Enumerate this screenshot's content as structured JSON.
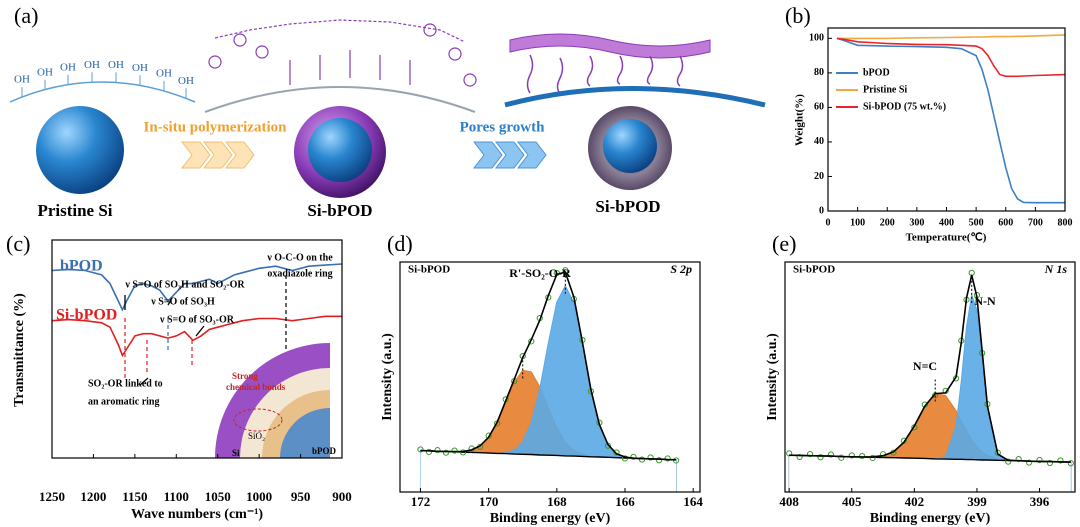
{
  "panel_a": {
    "label": "(a)",
    "oh": "OH",
    "items": [
      "Pristine Si",
      "Si-bPOD",
      "Si-bPOD"
    ],
    "steps": [
      "In-situ polymerization",
      "Pores growth"
    ]
  },
  "chart_data": [
    {
      "type": "line",
      "panel_label": "(b)",
      "x_label": "Temperature(℃)",
      "y_label": "Weight(%)",
      "x": [
        30,
        50,
        100,
        200,
        300,
        400,
        450,
        500,
        520,
        540,
        560,
        580,
        600,
        620,
        640,
        660,
        700,
        800
      ],
      "series": [
        {
          "name": "bPOD",
          "color": "#3d7fc1",
          "style": "line",
          "values": [
            100,
            99,
            96,
            95.5,
            95.2,
            94.8,
            94,
            90,
            82,
            70,
            55,
            40,
            25,
            13,
            7,
            5,
            4.8,
            4.8
          ]
        },
        {
          "name": "Pristine Si",
          "color": "#f2a93b",
          "style": "line",
          "values": [
            100,
            100,
            100,
            100,
            100.3,
            100.5,
            100.6,
            100.8,
            100.8,
            100.9,
            101,
            101,
            101,
            101.1,
            101.2,
            101.2,
            101.4,
            102
          ]
        },
        {
          "name": "Si-bPOD (75 wt.%)",
          "color": "#e8262a",
          "style": "line",
          "values": [
            100,
            99.5,
            98,
            97,
            96.5,
            96.3,
            96,
            95.5,
            94,
            90,
            84,
            79,
            78,
            78,
            78,
            78.2,
            78.5,
            79
          ]
        }
      ],
      "xlim": [
        0,
        800
      ],
      "xticks": [
        0,
        100,
        200,
        300,
        400,
        500,
        600,
        700,
        800
      ],
      "ylim": [
        0,
        106
      ],
      "yticks": [
        0,
        20,
        40,
        60,
        80,
        100
      ],
      "legend": "upper left"
    },
    {
      "type": "line",
      "panel_label": "(c)",
      "x_label": "Wave numbers (cm⁻¹)",
      "y_label": "Transmittance (%)",
      "x": [
        1250,
        1230,
        1210,
        1190,
        1180,
        1170,
        1165,
        1160,
        1150,
        1140,
        1130,
        1120,
        1110,
        1100,
        1090,
        1080,
        1070,
        1060,
        1050,
        1040,
        1030,
        1020,
        1000,
        980,
        960,
        940,
        920,
        900
      ],
      "series": [
        {
          "name": "bPOD",
          "color": "#3a6fb0",
          "style": "line",
          "values": [
            86,
            86.5,
            86,
            84,
            80,
            72,
            68,
            72,
            79,
            80,
            79,
            77,
            72,
            76,
            80,
            80,
            81,
            82,
            80,
            82,
            84,
            85,
            87,
            88,
            86,
            88,
            88.5,
            89
          ]
        },
        {
          "name": "Si-bPOD",
          "color": "#e02020",
          "style": "line",
          "values": [
            63,
            63.5,
            63,
            62,
            60,
            52,
            47,
            50,
            56,
            57,
            57,
            56,
            55,
            56,
            58,
            54,
            56,
            59,
            60,
            61,
            62,
            63,
            64,
            64,
            63,
            64,
            65,
            65
          ]
        }
      ],
      "xlim": [
        1250,
        900
      ],
      "xticks": [
        1250,
        1200,
        1150,
        1100,
        1050,
        1000,
        950,
        900
      ],
      "ylim": [
        0,
        100
      ],
      "annotations": [
        "ν O-C-O on the",
        "oxadiazole ring",
        "ν S=O of SO₃H and SO₂-OR",
        "ν S=O of SO₃H",
        "ν S=O of  SO₃-OR",
        "SO₂-OR linked to",
        "an aromatic ring"
      ],
      "inset": {
        "bond": [
          "Strong",
          "chemical bonds"
        ],
        "oxide": "SiO₂",
        "core": "Si",
        "shell": "bPOD"
      }
    },
    {
      "type": "line",
      "panel_label": "(d)",
      "x_label": "Binding energy (eV)",
      "y_label": "Intensity (a.u.)",
      "title": "Si-bPOD",
      "orbital": "S 2p",
      "annotations": [
        "R'-SO₂-O-R"
      ],
      "x": [
        172,
        171.75,
        171.5,
        171.25,
        171,
        170.75,
        170.5,
        170.25,
        170,
        169.75,
        169.5,
        169.25,
        169,
        168.75,
        168.5,
        168.25,
        168,
        167.75,
        167.5,
        167.25,
        167,
        166.75,
        166.5,
        166.25,
        166,
        165.75,
        165.5,
        165.25,
        165,
        164.75,
        164.5
      ],
      "series": [
        {
          "color": "#e57d2a",
          "style": "area",
          "values": [
            18,
            17.9,
            17.7,
            17.6,
            17.6,
            17.6,
            18.3,
            20.1,
            23.8,
            30.4,
            39.2,
            47.7,
            52.9,
            52.2,
            45.7,
            36.6,
            27.9,
            21.6,
            18,
            16.4,
            15.5,
            15.3,
            15.1,
            14.9,
            14.8,
            14.7,
            14.5,
            14.4,
            14.3,
            14.1,
            14
          ]
        },
        {
          "color": "#5aa9e6",
          "style": "area",
          "values": [
            18,
            17.9,
            17.7,
            17.6,
            17.5,
            17.3,
            17.2,
            17.1,
            16.9,
            16.8,
            17.1,
            18.2,
            21.9,
            30.3,
            45.1,
            64.8,
            82.6,
            89.7,
            82.3,
            64.3,
            44.3,
            29.2,
            20.6,
            16.6,
            15.2,
            14.7,
            14.5,
            14.4,
            14.3,
            14.1,
            14
          ]
        },
        {
          "color": "#000000",
          "style": "baseline",
          "values": [
            18,
            17.9,
            17.7,
            17.6,
            17.5,
            17.3,
            17.2,
            17.1,
            16.9,
            16.8,
            16.7,
            16.5,
            16.4,
            16.3,
            16.1,
            16,
            15.9,
            15.7,
            15.6,
            15.5,
            15.3,
            15.2,
            15.1,
            14.9,
            14.8,
            14.7,
            14.5,
            14.4,
            14.3,
            14.1,
            14
          ]
        },
        {
          "color": "#3a9a2a",
          "style": "markers",
          "values": [
            18.5,
            17.4,
            18.2,
            17.1,
            18,
            17.2,
            18.9,
            19.6,
            24.5,
            29.8,
            40.3,
            48.2,
            59.1,
            65.5,
            75.6,
            84.6,
            95.2,
            96.4,
            83.9,
            66.1,
            43.8,
            30.2,
            20.1,
            17.2,
            14.6,
            15.3,
            14.1,
            15,
            13.8,
            14.6,
            13.7
          ]
        },
        {
          "color": "#000000",
          "style": "line",
          "values": [
            18,
            17.9,
            17.7,
            17.6,
            17.6,
            17.6,
            18.3,
            20.1,
            23.8,
            30.4,
            39.6,
            48.9,
            58.4,
            66.2,
            74.7,
            85.4,
            94.6,
            95.6,
            84.7,
            65.2,
            44.5,
            29.3,
            20.6,
            16.6,
            15.2,
            14.7,
            14.5,
            14.4,
            14.3,
            14.1,
            14
          ]
        }
      ],
      "xlim": [
        172.6,
        163.8
      ],
      "xticks": [
        172,
        170,
        168,
        166,
        164
      ],
      "ylim": [
        0,
        100
      ]
    },
    {
      "type": "line",
      "panel_label": "(e)",
      "x_label": "Binding energy (eV)",
      "y_label": "Intensity (a.u.)",
      "title": "Si-bPOD",
      "orbital": "N 1s",
      "annotations": [
        "N=C",
        "N-N"
      ],
      "x": [
        408,
        407.5,
        407,
        406.5,
        406,
        405.5,
        405,
        404.5,
        404,
        403.5,
        403,
        402.5,
        402,
        401.5,
        401,
        400.5,
        400,
        399.75,
        399.5,
        399.25,
        399,
        398.75,
        398.5,
        398,
        397.5,
        397,
        396.5,
        396,
        395.5,
        395,
        394.5
      ],
      "series": [
        {
          "color": "#e57d2a",
          "style": "area",
          "values": [
            16,
            15.9,
            15.8,
            15.7,
            15.6,
            15.4,
            15.3,
            15.2,
            15.3,
            15.8,
            17.5,
            21.6,
            28.8,
            37.3,
            42.8,
            42,
            35.3,
            30.9,
            26.6,
            22.8,
            19.7,
            17.4,
            16,
            14.4,
            13.8,
            13.6,
            13.4,
            13.3,
            13.2,
            13.1,
            13
          ]
        },
        {
          "color": "#5aa9e6",
          "style": "area",
          "values": [
            16,
            15.9,
            15.8,
            15.7,
            15.6,
            15.4,
            15.3,
            15.2,
            15.1,
            15,
            14.9,
            14.8,
            14.7,
            14.6,
            14.4,
            15.4,
            29,
            48.3,
            71.8,
            85.7,
            79.2,
            57.6,
            35.4,
            15.9,
            13.7,
            13.6,
            13.4,
            13.3,
            13.2,
            13.1,
            13
          ]
        },
        {
          "color": "#000000",
          "style": "baseline",
          "values": [
            16,
            15.9,
            15.8,
            15.7,
            15.6,
            15.4,
            15.3,
            15.2,
            15.1,
            15,
            14.9,
            14.8,
            14.7,
            14.6,
            14.4,
            14.3,
            14.2,
            14.2,
            14.1,
            14.1,
            14,
            13.9,
            13.9,
            13.8,
            13.7,
            13.6,
            13.4,
            13.3,
            13.2,
            13.1,
            13
          ]
        },
        {
          "color": "#3a9a2a",
          "style": "markers",
          "values": [
            16.8,
            15.2,
            16.5,
            15.1,
            16.3,
            14.9,
            15.9,
            15.6,
            14.8,
            16.4,
            17.1,
            22.3,
            28.1,
            38,
            42.1,
            44,
            49.4,
            65.8,
            83.6,
            95.3,
            85.6,
            60.4,
            38.2,
            17.1,
            13.2,
            14.3,
            12.8,
            13.9,
            12.6,
            13.7,
            12.5
          ]
        },
        {
          "color": "#000000",
          "style": "line",
          "values": [
            16,
            15.9,
            15.8,
            15.7,
            15.6,
            15.4,
            15.3,
            15.2,
            15.3,
            15.8,
            17.5,
            21.6,
            28.8,
            37.3,
            42.8,
            43.1,
            50.1,
            65,
            84.3,
            94.4,
            84.9,
            61.1,
            37.5,
            16.5,
            13.8,
            13.6,
            13.4,
            13.3,
            13.2,
            13.1,
            13
          ]
        }
      ],
      "xlim": [
        408.2,
        394.3
      ],
      "xticks": [
        408,
        405,
        402,
        399,
        396
      ],
      "ylim": [
        0,
        100
      ]
    }
  ]
}
